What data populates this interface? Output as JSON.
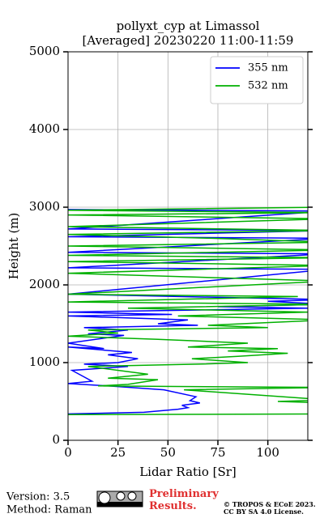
{
  "chart_data": {
    "type": "line",
    "title": "pollyxt_cyp at Limassol",
    "subtitle": "[Averaged] 20230220 11:00-11:59",
    "x_label": "Lidar Ratio [Sr]",
    "y_label": "Height (m)",
    "xlim": [
      0,
      120
    ],
    "xticks": [
      0,
      25,
      50,
      75,
      100
    ],
    "ylim": [
      0,
      5000
    ],
    "yticks": [
      0,
      1000,
      2000,
      3000,
      4000,
      5000
    ],
    "grid": true,
    "legend": "upper right",
    "series": [
      {
        "name": "355 nm",
        "color": "#0000ff",
        "x": [
          0,
          38,
          55,
          60,
          57,
          66,
          61,
          64,
          48,
          20,
          0,
          12,
          2,
          30,
          8,
          25,
          35,
          20,
          32,
          0,
          18,
          0,
          28,
          10,
          30,
          8,
          65,
          45,
          60,
          0,
          52,
          0,
          120,
          75,
          130,
          100,
          130,
          0,
          130,
          0,
          130,
          0,
          130,
          0,
          130,
          0,
          130,
          0
        ],
        "y": [
          340,
          360,
          400,
          420,
          450,
          480,
          510,
          560,
          650,
          700,
          730,
          760,
          900,
          950,
          980,
          1000,
          1050,
          1100,
          1130,
          1200,
          1180,
          1250,
          1350,
          1370,
          1420,
          1450,
          1480,
          1500,
          1550,
          1600,
          1620,
          1650,
          1700,
          1720,
          1750,
          1790,
          1810,
          1880,
          2200,
          2220,
          2400,
          2420,
          2600,
          2620,
          2700,
          2720,
          2950,
          2970
        ]
      },
      {
        "name": "532 nm",
        "color": "#00b000",
        "x": [
          0,
          130,
          130,
          105,
          130,
          58,
          130,
          15,
          30,
          45,
          20,
          40,
          10,
          65,
          90,
          62,
          85,
          110,
          80,
          105,
          60,
          90,
          45,
          0,
          25,
          10,
          100,
          70,
          130,
          55,
          120,
          30,
          130,
          0,
          115,
          0,
          130,
          0,
          130,
          0,
          130,
          0,
          130,
          0,
          130,
          72,
          0,
          130,
          0,
          130,
          0,
          130,
          0,
          130
        ],
        "y": [
          330,
          340,
          480,
          500,
          520,
          650,
          680,
          700,
          720,
          780,
          800,
          850,
          950,
          980,
          1000,
          1050,
          1080,
          1120,
          1150,
          1180,
          1200,
          1250,
          1300,
          1340,
          1380,
          1420,
          1450,
          1480,
          1550,
          1600,
          1650,
          1700,
          1750,
          1780,
          1850,
          1880,
          2050,
          2150,
          2250,
          2300,
          2350,
          2380,
          2450,
          2500,
          2550,
          2600,
          2650,
          2700,
          2750,
          2850,
          2900,
          2930,
          2960,
          3000
        ]
      }
    ]
  },
  "footer": {
    "version": "Version: 3.5",
    "method": "Method: Raman",
    "status": "Preliminary Results.",
    "copyright": "© TROPOS & ECoE 2023.",
    "license": "CC BY SA 4.0 License."
  }
}
